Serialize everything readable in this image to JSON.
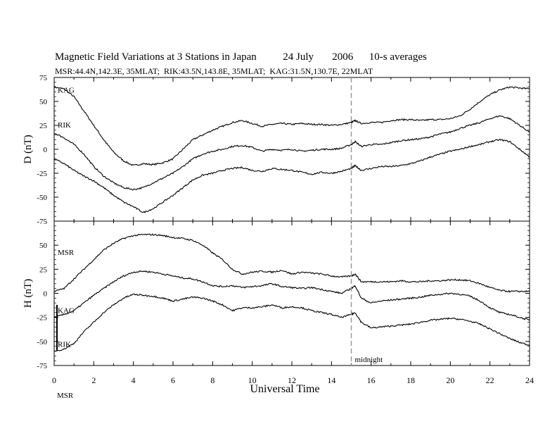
{
  "title_parts": [
    "Magnetic Field Variations at 3 Stations in Japan",
    "24 July",
    "2006",
    "10-s averages"
  ],
  "subtitle": "MSR:44.4N,142.3E, 35MLAT;  RIK:43.5N,143.8E, 35MLAT;  KAG:31.5N,130.7E, 22MLAT",
  "chart_data": [
    {
      "type": "line",
      "panel": "D",
      "ylabel": "D (nT)",
      "xlim": [
        0,
        24
      ],
      "ylim": [
        -75,
        75
      ],
      "yticks": [
        75,
        50,
        25,
        0,
        -25,
        -50,
        -75
      ],
      "series": [
        {
          "name": "KAG",
          "x": [
            0,
            0.5,
            1,
            1.5,
            2,
            2.5,
            3,
            3.5,
            4,
            4.5,
            5,
            5.5,
            6,
            6.5,
            7,
            7.5,
            8,
            8.5,
            9,
            9.5,
            10,
            10.5,
            11,
            11.5,
            12,
            12.5,
            13,
            13.5,
            14,
            14.5,
            15,
            15.2,
            15.5,
            16,
            16.5,
            17,
            17.5,
            18,
            18.5,
            19,
            19.5,
            20,
            20.5,
            21,
            21.5,
            22,
            22.5,
            23,
            23.5,
            24
          ],
          "y": [
            65,
            63,
            55,
            40,
            25,
            10,
            -3,
            -12,
            -17,
            -15,
            -16,
            -14,
            -10,
            0,
            10,
            15,
            20,
            24,
            28,
            30,
            27,
            24,
            26,
            27,
            26,
            27,
            26,
            26,
            25,
            26,
            28,
            30,
            27,
            28,
            28,
            30,
            31,
            31,
            30,
            31,
            31,
            32,
            35,
            42,
            50,
            57,
            62,
            65,
            64,
            63
          ]
        },
        {
          "name": "RIK",
          "x": [
            0,
            0.5,
            1,
            1.5,
            2,
            2.5,
            3,
            3.5,
            4,
            4.5,
            5,
            5.5,
            6,
            6.5,
            7,
            7.5,
            8,
            8.5,
            9,
            9.5,
            10,
            10.5,
            11,
            11.5,
            12,
            12.5,
            13,
            13.5,
            14,
            14.5,
            15,
            15.2,
            15.5,
            16,
            16.5,
            17,
            17.5,
            18,
            18.5,
            19,
            19.5,
            20,
            20.5,
            21,
            21.5,
            22,
            22.5,
            23,
            23.5,
            24
          ],
          "y": [
            17,
            12,
            5,
            -5,
            -18,
            -28,
            -35,
            -40,
            -42,
            -40,
            -35,
            -30,
            -25,
            -18,
            -10,
            -5,
            -2,
            0,
            3,
            4,
            2,
            -2,
            0,
            -1,
            0,
            -2,
            -1,
            0,
            0,
            1,
            5,
            8,
            3,
            5,
            5,
            7,
            9,
            10,
            11,
            13,
            16,
            18,
            22,
            25,
            28,
            32,
            35,
            32,
            25,
            18
          ]
        },
        {
          "name": "",
          "x": [
            0,
            0.5,
            1,
            1.5,
            2,
            2.5,
            3,
            3.5,
            4,
            4.5,
            5,
            5.5,
            6,
            6.5,
            7,
            7.5,
            8,
            8.5,
            9,
            9.5,
            10,
            10.5,
            11,
            11.5,
            12,
            12.5,
            13,
            13.5,
            14,
            14.5,
            15,
            15.2,
            15.5,
            16,
            16.5,
            17,
            17.5,
            18,
            18.5,
            19,
            19.5,
            20,
            20.5,
            21,
            21.5,
            22,
            22.5,
            23,
            23.5,
            24
          ],
          "y": [
            -10,
            -15,
            -22,
            -28,
            -33,
            -40,
            -48,
            -55,
            -60,
            -66,
            -62,
            -55,
            -48,
            -40,
            -32,
            -27,
            -25,
            -22,
            -20,
            -19,
            -22,
            -23,
            -20,
            -21,
            -22,
            -24,
            -26,
            -24,
            -25,
            -23,
            -20,
            -17,
            -22,
            -20,
            -18,
            -18,
            -17,
            -15,
            -12,
            -8,
            -5,
            -2,
            0,
            3,
            5,
            8,
            10,
            8,
            0,
            -8
          ]
        }
      ]
    },
    {
      "type": "line",
      "panel": "H",
      "ylabel": "H (nT)",
      "xlabel": "Universal Time",
      "xlim": [
        0,
        24
      ],
      "ylim": [
        -75,
        75
      ],
      "yticks": [
        50,
        25,
        0,
        -25,
        -50,
        -75
      ],
      "xticks": [
        0,
        2,
        4,
        6,
        8,
        10,
        12,
        14,
        16,
        18,
        20,
        22,
        24
      ],
      "series": [
        {
          "name": "MSR",
          "x": [
            0,
            0.5,
            1,
            1.5,
            2,
            2.5,
            3,
            3.5,
            4,
            4.5,
            5,
            5.5,
            6,
            6.5,
            7,
            7.5,
            8,
            8.5,
            9,
            9.5,
            10,
            10.5,
            11,
            11.5,
            12,
            12.5,
            13,
            13.5,
            14,
            14.5,
            15,
            15.2,
            15.5,
            16,
            16.5,
            17,
            17.5,
            18,
            18.5,
            19,
            19.5,
            20,
            20.5,
            21,
            21.5,
            22,
            22.5,
            23,
            23.5,
            24
          ],
          "y": [
            2,
            5,
            15,
            25,
            35,
            45,
            52,
            57,
            60,
            61,
            61,
            60,
            58,
            57,
            55,
            50,
            42,
            35,
            25,
            20,
            22,
            23,
            22,
            24,
            20,
            22,
            21,
            20,
            18,
            17,
            18,
            20,
            12,
            12,
            12,
            12,
            13,
            12,
            12,
            13,
            13,
            14,
            14,
            13,
            10,
            6,
            3,
            2,
            2,
            2
          ]
        },
        {
          "name": "KAG",
          "x": [
            0,
            0.5,
            1,
            1.5,
            2,
            2.5,
            3,
            3.5,
            4,
            4.5,
            5,
            5.5,
            6,
            6.5,
            7,
            7.5,
            8,
            8.5,
            9,
            9.5,
            10,
            10.5,
            11,
            11.5,
            12,
            12.5,
            13,
            13.5,
            14,
            14.5,
            15,
            15.2,
            15.5,
            16,
            16.5,
            17,
            17.5,
            18,
            18.5,
            19,
            19.5,
            20,
            20.5,
            21,
            21.5,
            22,
            22.5,
            23,
            23.5,
            24
          ],
          "y": [
            -25,
            -22,
            -18,
            -10,
            -2,
            5,
            12,
            18,
            22,
            23,
            22,
            20,
            18,
            16,
            15,
            12,
            8,
            7,
            8,
            6,
            7,
            8,
            10,
            7,
            6,
            5,
            6,
            4,
            2,
            0,
            5,
            8,
            -5,
            -10,
            -8,
            -7,
            -6,
            -5,
            -4,
            -2,
            -1,
            0,
            -1,
            -3,
            -8,
            -15,
            -20,
            -22,
            -25,
            -28
          ]
        },
        {
          "name": "RIK",
          "x": [
            0,
            0.5,
            1,
            1.5,
            2,
            2.5,
            3,
            3.5,
            4,
            4.5,
            5,
            5.5,
            6,
            6.5,
            7,
            7.5,
            8,
            8.5,
            9,
            9.5,
            10,
            10.5,
            11,
            11.5,
            12,
            12.5,
            13,
            13.5,
            14,
            14.5,
            15,
            15.2,
            15.5,
            16,
            16.5,
            17,
            17.5,
            18,
            18.5,
            19,
            19.5,
            20,
            20.5,
            21,
            21.5,
            22,
            22.5,
            23,
            23.5,
            24
          ],
          "y": [
            -60,
            -58,
            -52,
            -40,
            -30,
            -20,
            -12,
            -5,
            -1,
            -2,
            -3,
            -5,
            -8,
            -6,
            -4,
            -5,
            -8,
            -12,
            -18,
            -15,
            -15,
            -14,
            -12,
            -15,
            -14,
            -15,
            -18,
            -20,
            -22,
            -25,
            -22,
            -20,
            -30,
            -36,
            -35,
            -34,
            -33,
            -32,
            -30,
            -28,
            -27,
            -26,
            -27,
            -29,
            -32,
            -37,
            -42,
            -47,
            -51,
            -54
          ]
        }
      ]
    }
  ],
  "annotations": {
    "vline_x": 15,
    "vline_label": "midnight",
    "bottom_label": "MSR"
  }
}
